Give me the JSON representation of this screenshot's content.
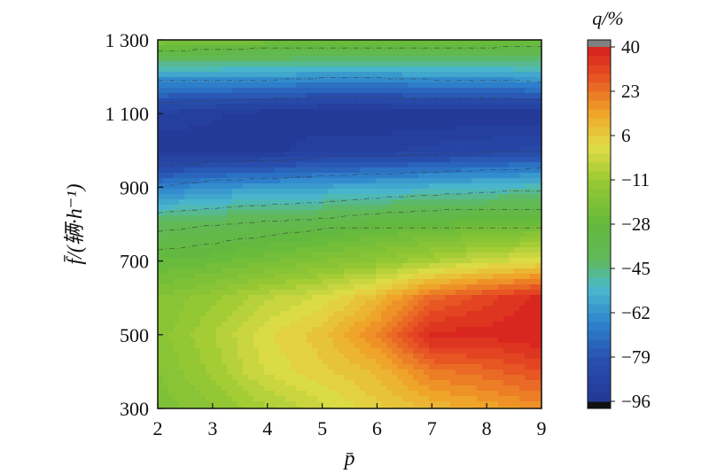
{
  "chart_data": {
    "type": "heatmap",
    "title": "",
    "xlabel": "p̄",
    "ylabel": "f̄/(辆·h⁻¹)",
    "xlim": [
      2,
      9
    ],
    "ylim": [
      300,
      1300
    ],
    "x_ticks": [
      "2",
      "3",
      "4",
      "5",
      "6",
      "7",
      "8",
      "9"
    ],
    "y_ticks": [
      "300",
      "500",
      "700",
      "900",
      "1 100",
      "1 300"
    ],
    "colorbar": {
      "label": "q/%",
      "range": [
        -96,
        40
      ],
      "ticks": [
        "40",
        "23",
        "6",
        "−11",
        "−28",
        "−45",
        "−62",
        "−79",
        "−96"
      ],
      "over_color": "#808080",
      "under_color": "#111111"
    },
    "x": [
      2,
      3,
      4,
      5,
      6,
      7,
      8,
      9
    ],
    "y": [
      300,
      400,
      500,
      600,
      700,
      800,
      900,
      1000,
      1100,
      1200,
      1300
    ],
    "z": [
      [
        -20,
        -15,
        -8,
        -2,
        5,
        10,
        14,
        18
      ],
      [
        -18,
        -10,
        0,
        5,
        10,
        22,
        25,
        30
      ],
      [
        -16,
        -8,
        2,
        8,
        20,
        38,
        38,
        40
      ],
      [
        -18,
        -12,
        -5,
        0,
        10,
        25,
        32,
        38
      ],
      [
        -28,
        -26,
        -22,
        -18,
        -14,
        -8,
        -2,
        2
      ],
      [
        -40,
        -38,
        -36,
        -34,
        -30,
        -28,
        -26,
        -24
      ],
      [
        -68,
        -62,
        -60,
        -58,
        -56,
        -54,
        -52,
        -50
      ],
      [
        -95,
        -95,
        -94,
        -90,
        -90,
        -88,
        -86,
        -85
      ],
      [
        -90,
        -92,
        -95,
        -96,
        -96,
        -96,
        -96,
        -95
      ],
      [
        -60,
        -60,
        -60,
        -62,
        -62,
        -60,
        -60,
        -58
      ],
      [
        -18,
        -20,
        -22,
        -22,
        -22,
        -23,
        -23,
        -25
      ]
    ]
  }
}
